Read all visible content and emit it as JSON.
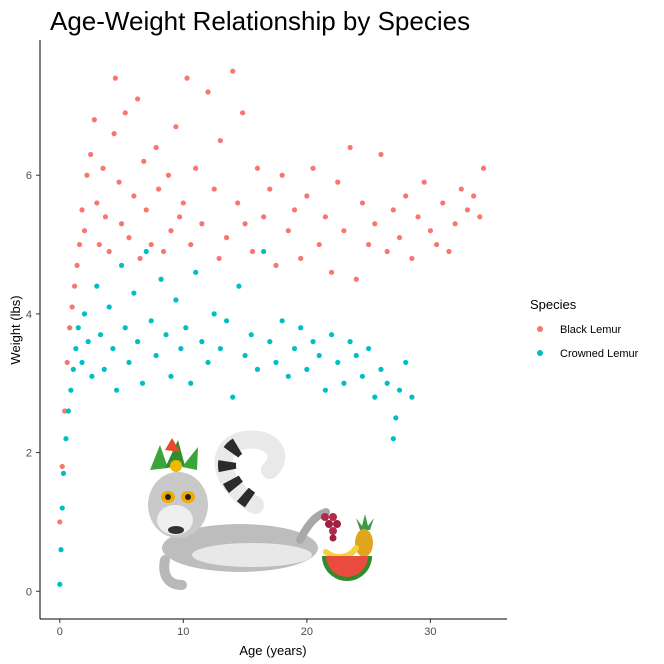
{
  "chart_data": {
    "type": "scatter",
    "title": "Age-Weight Relationship by Species",
    "xlabel": "Age (years)",
    "ylabel": "Weight (lbs)",
    "xlim": [
      -1.6,
      36.2
    ],
    "ylim": [
      -0.4,
      7.95
    ],
    "x_ticks": [
      0,
      10,
      20,
      30
    ],
    "y_ticks": [
      0,
      2,
      4,
      6
    ],
    "grid": false,
    "legend": {
      "title": "Species",
      "placement": "right"
    },
    "series": [
      {
        "name": "Black Lemur",
        "color": "#F8766D",
        "x": [
          0.0,
          0.2,
          0.4,
          0.6,
          0.8,
          1.0,
          1.2,
          1.4,
          1.6,
          1.8,
          2.0,
          2.2,
          2.5,
          2.8,
          3.0,
          3.2,
          3.5,
          3.7,
          4.0,
          4.4,
          4.5,
          4.8,
          5.0,
          5.3,
          5.6,
          6.0,
          6.3,
          6.5,
          6.8,
          7.0,
          7.4,
          7.8,
          8.0,
          8.4,
          8.8,
          9.0,
          9.4,
          9.7,
          10.0,
          10.3,
          10.6,
          11.0,
          11.5,
          12.0,
          12.5,
          12.9,
          13.0,
          13.5,
          14.0,
          14.4,
          14.8,
          15.0,
          15.6,
          16.0,
          16.5,
          17.0,
          17.5,
          18.0,
          18.5,
          19.0,
          19.5,
          20.0,
          20.5,
          21.0,
          21.5,
          22.0,
          22.5,
          23.0,
          23.5,
          24.0,
          24.5,
          25.0,
          25.5,
          26.0,
          26.5,
          27.0,
          27.5,
          28.0,
          28.5,
          29.0,
          29.5,
          30.0,
          30.5,
          31.0,
          31.5,
          32.0,
          32.5,
          33.0,
          33.5,
          34.0,
          34.3
        ],
        "y": [
          1.0,
          1.8,
          2.6,
          3.3,
          3.8,
          4.1,
          4.4,
          4.7,
          5.0,
          5.5,
          5.2,
          6.0,
          6.3,
          6.8,
          5.6,
          5.0,
          6.1,
          5.4,
          4.9,
          6.6,
          7.4,
          5.9,
          5.3,
          6.9,
          5.1,
          5.7,
          7.1,
          4.8,
          6.2,
          5.5,
          5.0,
          6.4,
          5.8,
          4.9,
          6.0,
          5.2,
          6.7,
          5.4,
          5.6,
          7.4,
          5.0,
          6.1,
          5.3,
          7.2,
          5.8,
          4.8,
          6.5,
          5.1,
          7.5,
          5.6,
          6.9,
          5.3,
          4.9,
          6.1,
          5.4,
          5.8,
          4.7,
          6.0,
          5.2,
          5.5,
          4.8,
          5.7,
          6.1,
          5.0,
          5.4,
          4.6,
          5.9,
          5.2,
          6.4,
          4.5,
          5.6,
          5.0,
          5.3,
          6.3,
          4.9,
          5.5,
          5.1,
          5.7,
          4.8,
          5.4,
          5.9,
          5.2,
          5.0,
          5.6,
          4.9,
          5.3,
          5.8,
          5.5,
          5.7,
          5.4,
          6.1
        ]
      },
      {
        "name": "Crowned Lemur",
        "color": "#00BFC4",
        "x": [
          0.0,
          0.1,
          0.2,
          0.3,
          0.5,
          0.7,
          0.9,
          1.1,
          1.3,
          1.5,
          1.8,
          2.0,
          2.3,
          2.6,
          3.0,
          3.3,
          3.6,
          4.0,
          4.3,
          4.6,
          5.0,
          5.3,
          5.6,
          6.0,
          6.3,
          6.7,
          7.0,
          7.4,
          7.8,
          8.2,
          8.6,
          9.0,
          9.4,
          9.8,
          10.2,
          10.6,
          11.0,
          11.5,
          12.0,
          12.5,
          13.0,
          13.5,
          14.0,
          14.5,
          15.0,
          15.5,
          16.0,
          16.5,
          17.0,
          17.5,
          18.0,
          18.5,
          19.0,
          19.5,
          20.0,
          20.5,
          21.0,
          21.5,
          22.0,
          22.5,
          23.0,
          23.5,
          24.0,
          24.5,
          25.0,
          25.5,
          26.0,
          26.5,
          27.0,
          27.2,
          27.5,
          28.0,
          28.5
        ],
        "y": [
          0.1,
          0.6,
          1.2,
          1.7,
          2.2,
          2.6,
          2.9,
          3.2,
          3.5,
          3.8,
          3.3,
          4.0,
          3.6,
          3.1,
          4.4,
          3.7,
          3.2,
          4.1,
          3.5,
          2.9,
          4.7,
          3.8,
          3.3,
          4.3,
          3.6,
          3.0,
          4.9,
          3.9,
          3.4,
          4.5,
          3.7,
          3.1,
          4.2,
          3.5,
          3.8,
          3.0,
          4.6,
          3.6,
          3.3,
          4.0,
          3.5,
          3.9,
          2.8,
          4.4,
          3.4,
          3.7,
          3.2,
          4.9,
          3.6,
          3.3,
          3.9,
          3.1,
          3.5,
          3.8,
          3.2,
          3.6,
          3.4,
          2.9,
          3.7,
          3.3,
          3.0,
          3.6,
          3.4,
          3.1,
          3.5,
          2.8,
          3.2,
          3.0,
          2.2,
          2.5,
          2.9,
          3.3,
          2.8
        ]
      }
    ]
  },
  "illustration": {
    "subject": "cartoon ring-tailed lemur with leaf crown, grapes, pineapple and watermelon",
    "icon": "lemur-illustration"
  }
}
